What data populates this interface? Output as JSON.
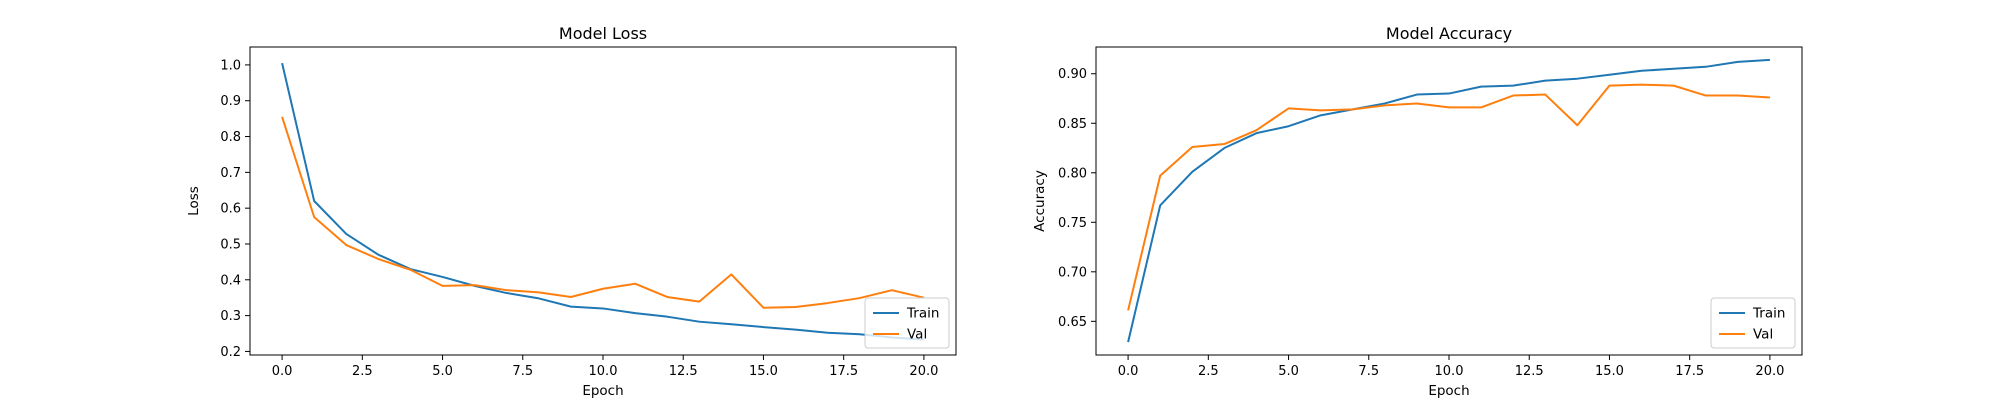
{
  "chart_data": [
    {
      "type": "line",
      "title": "Model Loss",
      "xlabel": "Epoch",
      "ylabel": "Loss",
      "xlim": [
        -1.0,
        21.0
      ],
      "ylim": [
        0.19,
        1.05
      ],
      "xticks": [
        0.0,
        2.5,
        5.0,
        7.5,
        10.0,
        12.5,
        15.0,
        17.5,
        20.0
      ],
      "xtick_labels": [
        "0.0",
        "2.5",
        "5.0",
        "7.5",
        "10.0",
        "12.5",
        "15.0",
        "17.5",
        "20.0"
      ],
      "yticks": [
        0.2,
        0.3,
        0.4,
        0.5,
        0.6,
        0.7,
        0.8,
        0.9,
        1.0
      ],
      "ytick_labels": [
        "0.2",
        "0.3",
        "0.4",
        "0.5",
        "0.6",
        "0.7",
        "0.8",
        "0.9",
        "1.0"
      ],
      "grid": false,
      "legend_position": "lower right",
      "x": [
        0,
        1,
        2,
        3,
        4,
        5,
        6,
        7,
        8,
        9,
        10,
        11,
        12,
        13,
        14,
        15,
        16,
        17,
        18,
        19,
        20
      ],
      "series": [
        {
          "name": "Train",
          "color": "#1f77b4",
          "values": [
            1.005,
            0.62,
            0.528,
            0.47,
            0.43,
            0.408,
            0.383,
            0.363,
            0.348,
            0.325,
            0.32,
            0.307,
            0.297,
            0.283,
            0.276,
            0.268,
            0.261,
            0.252,
            0.248,
            0.239,
            0.233
          ]
        },
        {
          "name": "Val",
          "color": "#ff7f0e",
          "values": [
            0.855,
            0.575,
            0.497,
            0.458,
            0.428,
            0.383,
            0.385,
            0.371,
            0.365,
            0.352,
            0.375,
            0.389,
            0.352,
            0.339,
            0.415,
            0.322,
            0.324,
            0.335,
            0.349,
            0.371,
            0.35
          ]
        }
      ]
    },
    {
      "type": "line",
      "title": "Model Accuracy",
      "xlabel": "Epoch",
      "ylabel": "Accuracy",
      "xlim": [
        -1.0,
        21.0
      ],
      "ylim": [
        0.616,
        0.927
      ],
      "xticks": [
        0.0,
        2.5,
        5.0,
        7.5,
        10.0,
        12.5,
        15.0,
        17.5,
        20.0
      ],
      "xtick_labels": [
        "0.0",
        "2.5",
        "5.0",
        "7.5",
        "10.0",
        "12.5",
        "15.0",
        "17.5",
        "20.0"
      ],
      "yticks": [
        0.65,
        0.7,
        0.75,
        0.8,
        0.85,
        0.9
      ],
      "ytick_labels": [
        "0.65",
        "0.70",
        "0.75",
        "0.80",
        "0.85",
        "0.90"
      ],
      "grid": false,
      "legend_position": "lower right",
      "x": [
        0,
        1,
        2,
        3,
        4,
        5,
        6,
        7,
        8,
        9,
        10,
        11,
        12,
        13,
        14,
        15,
        16,
        17,
        18,
        19,
        20
      ],
      "series": [
        {
          "name": "Train",
          "color": "#1f77b4",
          "values": [
            0.629,
            0.767,
            0.801,
            0.825,
            0.84,
            0.847,
            0.858,
            0.864,
            0.87,
            0.879,
            0.88,
            0.887,
            0.888,
            0.893,
            0.895,
            0.899,
            0.903,
            0.905,
            0.907,
            0.912,
            0.914
          ]
        },
        {
          "name": "Val",
          "color": "#ff7f0e",
          "values": [
            0.661,
            0.797,
            0.826,
            0.829,
            0.843,
            0.865,
            0.863,
            0.864,
            0.868,
            0.87,
            0.866,
            0.866,
            0.878,
            0.879,
            0.848,
            0.888,
            0.889,
            0.888,
            0.878,
            0.878,
            0.876
          ]
        }
      ]
    }
  ]
}
